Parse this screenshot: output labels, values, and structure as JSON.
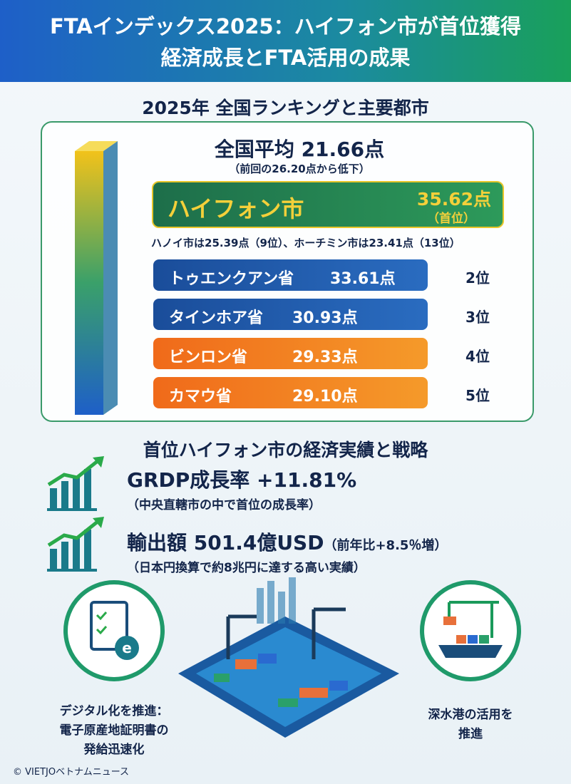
{
  "header": {
    "title_lines": [
      "FTAインデックス2025：ハイフォン市が首位獲得",
      "経済成長とFTA活用の成果"
    ]
  },
  "ranking": {
    "heading": "2025年 全国ランキングと主要都市",
    "average": "全国平均 21.66点",
    "average_note": "（前回の26.20点から低下）",
    "top": {
      "name": "ハイフォン市",
      "score": "35.62点",
      "rank": "（首位）"
    },
    "others_note": "ハノイ市は25.39点（9位）、ホーチミン市は23.41点（13位）",
    "rows": [
      {
        "name": "トゥエンクアン省",
        "score": "33.61点",
        "rank": "2位"
      },
      {
        "name": "タインホア省",
        "score": "30.93点",
        "rank": "3位"
      },
      {
        "name": "ビンロン省",
        "score": "29.33点",
        "rank": "4位"
      },
      {
        "name": "カマウ省",
        "score": "29.10点",
        "rank": "5位"
      }
    ]
  },
  "performance": {
    "heading": "首位ハイフォン市の経済実績と戦略",
    "items": [
      {
        "main": "GRDP成長率 +11.81%",
        "note": "（中央直轄市の中で首位の成長率）"
      },
      {
        "main": "輸出額 501.4億USD",
        "suffix": "（前年比+8.5％増）",
        "note": "（日本円換算で約8兆円に達する高い実績）"
      }
    ]
  },
  "strategies": [
    {
      "lines": [
        "デジタル化を推進：",
        "電子原産地証明書の",
        "発給迅速化"
      ]
    },
    {
      "lines": [
        "深水港の活用を",
        "推進"
      ]
    }
  ],
  "credit": "© VIETJOベトナムニュース"
}
